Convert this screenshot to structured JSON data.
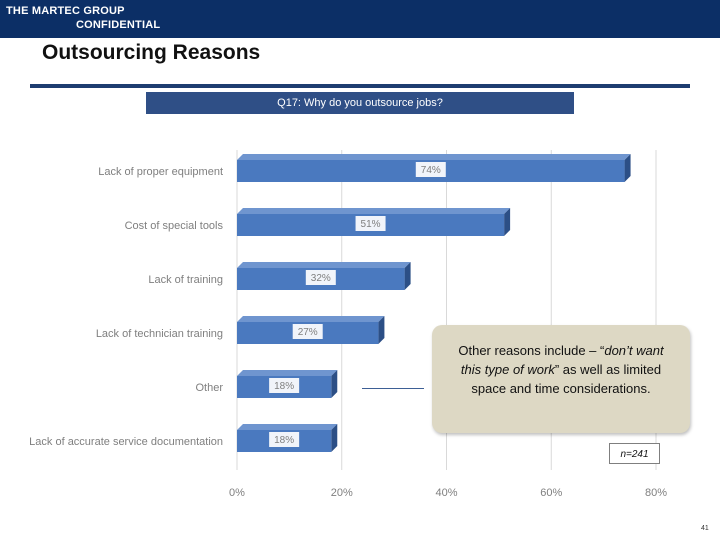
{
  "header": {
    "company": "THE MARTEC GROUP",
    "classification": "CONFIDENTIAL"
  },
  "page_title": "Outsourcing Reasons",
  "question": "Q17: Why do you outsource jobs?",
  "chart_data": {
    "type": "bar",
    "orientation": "horizontal",
    "title": "Q17: Why do you outsource jobs?",
    "categories": [
      "Lack of proper equipment",
      "Cost of special tools",
      "Lack of training",
      "Lack of technician training",
      "Other",
      "Lack of accurate service documentation"
    ],
    "values": [
      74,
      51,
      32,
      27,
      18,
      18
    ],
    "value_labels": [
      "74%",
      "51%",
      "32%",
      "27%",
      "18%",
      "18%"
    ],
    "xlim": [
      0,
      80
    ],
    "xticks": [
      0,
      20,
      40,
      60,
      80
    ],
    "xtick_labels": [
      "0%",
      "20%",
      "40%",
      "60%",
      "80%"
    ],
    "xlabel": "",
    "ylabel": "",
    "grid": true,
    "bar_color": "#4a79bf"
  },
  "callout": {
    "text_before": "Other reasons include – “",
    "quote": "don’t want this type of work",
    "text_after": "” as well as limited space and time considerations."
  },
  "sample_size": "n=241",
  "page_number": "41"
}
